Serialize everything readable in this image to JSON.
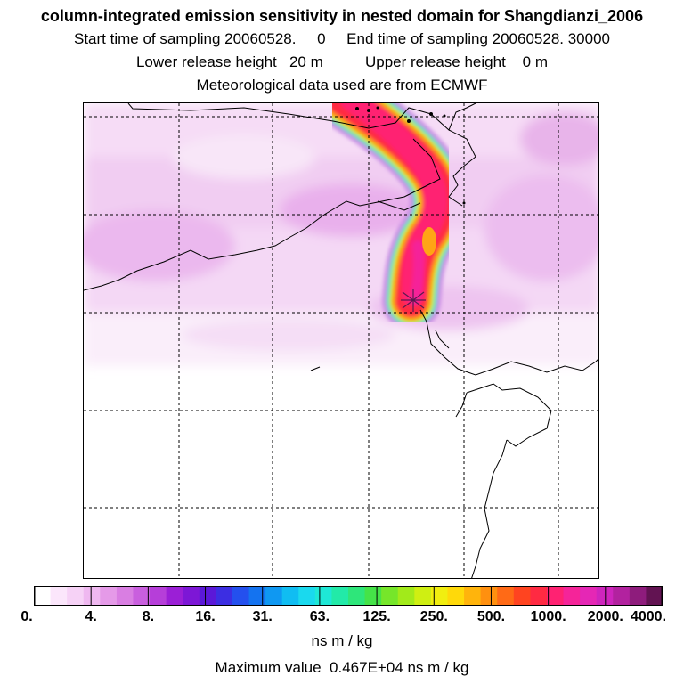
{
  "header": {
    "title": "column-integrated emission sensitivity in nested domain for Shangdianzi_2006",
    "line2": "Start time of sampling 20060528.     0     End time of sampling 20060528. 30000",
    "line3": "Lower release height   20 m          Upper release height    0 m",
    "line4": "Meteorological data used are from ECMWF"
  },
  "colorbar": {
    "colors": [
      "#ffffff",
      "#fbe6fb",
      "#f6d2f6",
      "#efb8f0",
      "#e59ae8",
      "#d97ee2",
      "#c95fde",
      "#b63ed9",
      "#9b1fd6",
      "#7d17d6",
      "#5b18d8",
      "#3c2ee2",
      "#2450ee",
      "#1473f0",
      "#0f98f2",
      "#10bdf2",
      "#1ad9ee",
      "#1ee8d6",
      "#22eaa8",
      "#2ee67a",
      "#45e348",
      "#76e62a",
      "#a2ea1a",
      "#cfef12",
      "#f1ee10",
      "#ffd90a",
      "#ffb40c",
      "#ff900f",
      "#ff6a16",
      "#ff4420",
      "#ff2a42",
      "#ff2272",
      "#f52499",
      "#e527b5",
      "#ce25bd",
      "#b2229f",
      "#8e1c7c",
      "#621352"
    ],
    "ticks": [
      "0.",
      "4.",
      "8.",
      "16.",
      "31.",
      "63.",
      "125.",
      "250.",
      "500.",
      "1000.",
      "2000.",
      "4000."
    ],
    "unit": "ns m / kg"
  },
  "footer": {
    "max_value": "Maximum value  0.467E+04 ns m / kg"
  }
}
